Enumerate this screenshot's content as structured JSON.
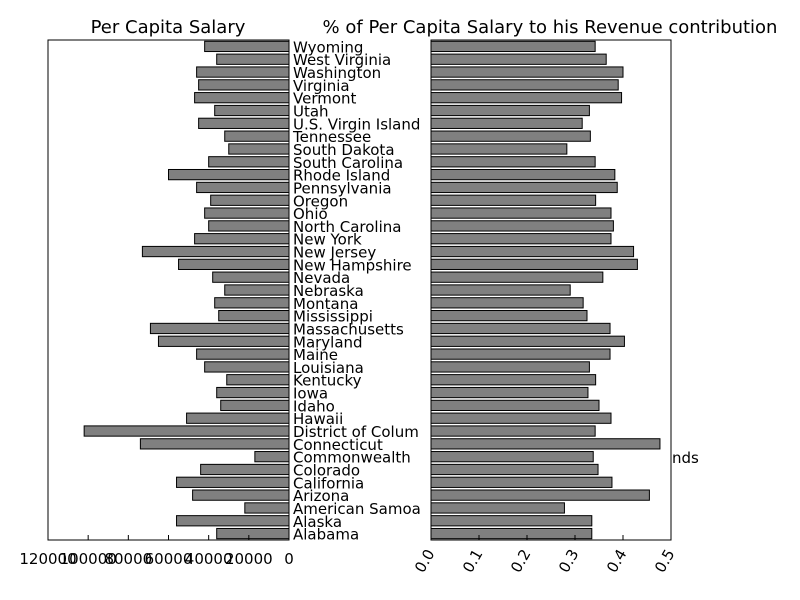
{
  "chart_data": [
    {
      "type": "bar",
      "orientation": "horizontal",
      "title": "Per Capita Salary",
      "xlim": [
        0,
        120000
      ],
      "x_inverted": true,
      "xticks": [
        120000,
        100000,
        80000,
        60000,
        40000,
        20000,
        0
      ],
      "xtick_labels": [
        "120000",
        "100000",
        "80000",
        "60000",
        "40000",
        "20000",
        "0"
      ],
      "bar_color": "#808080",
      "grid": false,
      "categories": [
        "Alabama",
        "Alaska",
        "American Samoa",
        "Arizona",
        "California",
        "Colorado",
        "Commonwealth of the Northern Mariana Islands",
        "Connecticut",
        "District of Columbia",
        "Hawaii",
        "Idaho",
        "Iowa",
        "Kentucky",
        "Louisiana",
        "Maine",
        "Maryland",
        "Massachusetts",
        "Mississippi",
        "Montana",
        "Nebraska",
        "Nevada",
        "New Hampshire",
        "New Jersey",
        "New York",
        "North Carolina",
        "Ohio",
        "Oregon",
        "Pennsylvania",
        "Rhode Island",
        "South Carolina",
        "South Dakota",
        "Tennessee",
        "U.S. Virgin Islands",
        "Utah",
        "Vermont",
        "Virginia",
        "Washington",
        "West Virginia",
        "Wyoming"
      ],
      "values": [
        36000,
        56000,
        22000,
        48000,
        56000,
        44000,
        17000,
        74000,
        102000,
        51000,
        34000,
        36000,
        31000,
        42000,
        46000,
        65000,
        69000,
        35000,
        37000,
        32000,
        38000,
        55000,
        73000,
        47000,
        40000,
        42000,
        39000,
        46000,
        60000,
        40000,
        30000,
        32000,
        45000,
        37000,
        47000,
        45000,
        46000,
        36000,
        42000
      ]
    },
    {
      "type": "bar",
      "orientation": "horizontal",
      "title": "% of Per Capita Salary to his Revenue contribution",
      "xlim": [
        0,
        0.5
      ],
      "xticks": [
        0.0,
        0.1,
        0.2,
        0.3,
        0.4,
        0.5
      ],
      "xtick_labels": [
        "0.0",
        "0.1",
        "0.2",
        "0.3",
        "0.4",
        "0.5"
      ],
      "bar_color": "#808080",
      "grid": false,
      "categories": [
        "Alabama",
        "Alaska",
        "American Samoa",
        "Arizona",
        "California",
        "Colorado",
        "Commonwealth of the Northern Mariana Islands",
        "Connecticut",
        "District of Columbia",
        "Hawaii",
        "Idaho",
        "Iowa",
        "Kentucky",
        "Louisiana",
        "Maine",
        "Maryland",
        "Massachusetts",
        "Mississippi",
        "Montana",
        "Nebraska",
        "Nevada",
        "New Hampshire",
        "New Jersey",
        "New York",
        "North Carolina",
        "Ohio",
        "Oregon",
        "Pennsylvania",
        "Rhode Island",
        "South Carolina",
        "South Dakota",
        "Tennessee",
        "U.S. Virgin Islands",
        "Utah",
        "Vermont",
        "Virginia",
        "Washington",
        "West Virginia",
        "Wyoming"
      ],
      "values": [
        0.335,
        0.335,
        0.278,
        0.455,
        0.377,
        0.348,
        0.338,
        0.477,
        0.342,
        0.375,
        0.35,
        0.327,
        0.343,
        0.33,
        0.373,
        0.403,
        0.373,
        0.325,
        0.317,
        0.29,
        0.358,
        0.43,
        0.422,
        0.375,
        0.38,
        0.375,
        0.343,
        0.388,
        0.383,
        0.342,
        0.283,
        0.332,
        0.315,
        0.33,
        0.397,
        0.39,
        0.4,
        0.365,
        0.342
      ]
    }
  ],
  "category_labels": [
    "Alabama",
    "Alaska",
    "American Samoa",
    "Arizona",
    "California",
    "Colorado",
    "Commonwealth",
    "Connecticut",
    "District of Colum",
    "Hawaii",
    "Idaho",
    "Iowa",
    "Kentucky",
    "Louisiana",
    "Maine",
    "Maryland",
    "Massachusetts",
    "Mississippi",
    "Montana",
    "Nebraska",
    "Nevada",
    "New Hampshire",
    "New Jersey",
    "New York",
    "North Carolina",
    "Ohio",
    "Oregon",
    "Pennsylvania",
    "Rhode Island",
    "South Carolina",
    "South Dakota",
    "Tennessee",
    "U.S. Virgin Island",
    "Utah",
    "Vermont",
    "Virginia",
    "Washington",
    "West Virginia",
    "Wyoming"
  ],
  "overflow_label": "nds"
}
